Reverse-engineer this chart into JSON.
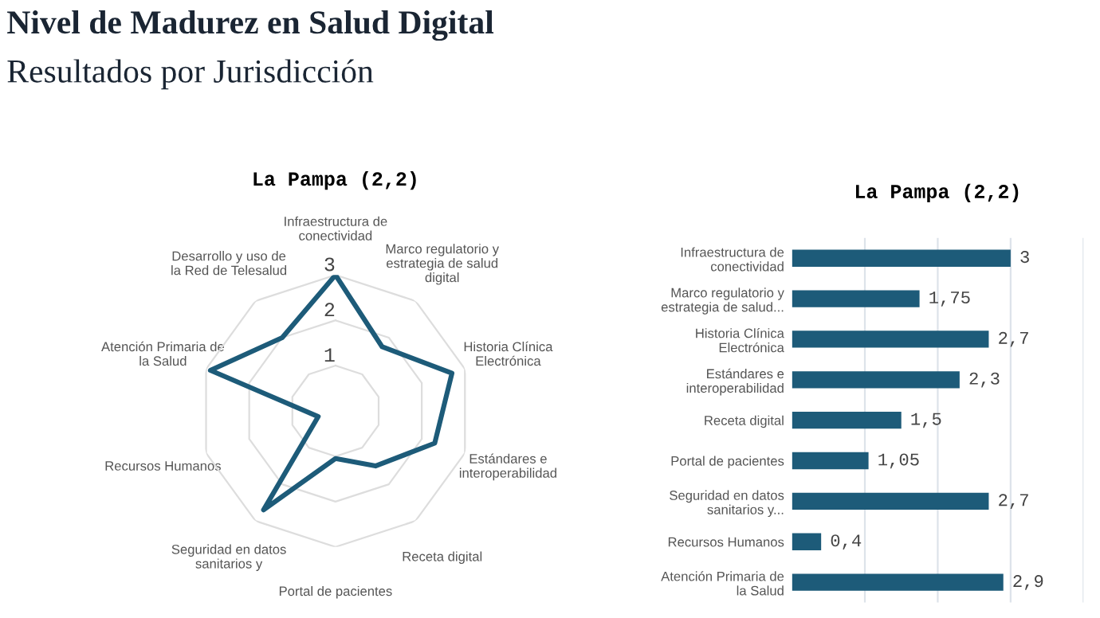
{
  "chart_data": [
    {
      "type": "other",
      "title": "Nivel de Madurez en Salud Digital",
      "subtitle": "Resultados por Jurisdicción"
    },
    {
      "type": "radar",
      "title": "La Pampa (2,2)",
      "categories": [
        "Infraestructura de\nconectividad",
        "Marco regulatorio y\nestrategia de salud\ndigital",
        "Historia Clínica\nElectrónica",
        "Estándares e\ninteroperabilidad",
        "Receta digital",
        "Portal de pacientes",
        "Seguridad en datos\nsanitarios y",
        "Recursos Humanos",
        "Atención Primaria de\nla Salud",
        "Desarrollo y uso de\nla Red de Telesalud"
      ],
      "series": [
        {
          "color": "#1d5b79",
          "values": [
            3,
            1.75,
            2.7,
            2.3,
            1.5,
            1.05,
            2.7,
            0.4,
            2.9,
            2
          ]
        }
      ],
      "ylim": [
        0,
        3
      ],
      "yticks": [
        1,
        2,
        3
      ],
      "grid": true
    },
    {
      "type": "bar",
      "orientation": "horizontal",
      "title": "La Pampa (2,2)",
      "categories": [
        "Infraestructura de\nconectividad",
        "Marco regulatorio y\nestrategia de salud...",
        "Historia Clínica\nElectrónica",
        "Estándares e\ninteroperabilidad",
        "Receta digital",
        "Portal de pacientes",
        "Seguridad en datos\nsanitarios y...",
        "Recursos Humanos",
        "Atención Primaria de\nla Salud"
      ],
      "values": [
        3,
        1.75,
        2.7,
        2.3,
        1.5,
        1.05,
        2.7,
        0.4,
        2.9
      ],
      "color": "#1d5b79",
      "value_labels": [
        "3",
        "1,75",
        "2,7",
        "2,3",
        "1,5",
        "1,05",
        "2,7",
        "0,4",
        "2,9"
      ],
      "xlim": [
        0,
        4
      ],
      "xticks": [
        {
          "value": 1,
          "label": null
        },
        {
          "value": 2,
          "label": null
        },
        {
          "value": 3,
          "label": null
        },
        {
          "value": 4,
          "label": null
        }
      ],
      "grid": "x",
      "tick_labels": "y"
    }
  ]
}
